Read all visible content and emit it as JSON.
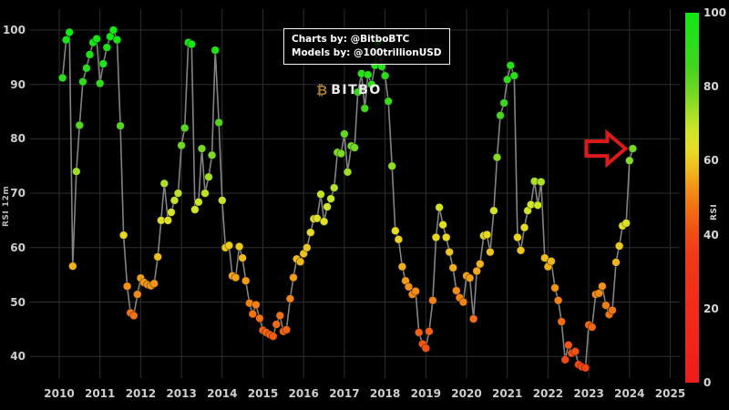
{
  "attribution": {
    "line1": "Charts by: @BitboBTC",
    "line2": "Models by: @100trillionUSD"
  },
  "logo": {
    "symbol": "₿",
    "text": "BITBO"
  },
  "axes": {
    "ylabel": "RSI 12m",
    "colorbar_label": "RSI",
    "x_ticks": [
      "2010",
      "2011",
      "2012",
      "2013",
      "2014",
      "2015",
      "2016",
      "2017",
      "2018",
      "2019",
      "2020",
      "2021",
      "2022",
      "2023",
      "2024",
      "2025"
    ],
    "y_ticks": [
      "100",
      "90",
      "80",
      "70",
      "60",
      "50",
      "40"
    ],
    "colorbar_ticks": [
      "100",
      "80",
      "60",
      "40",
      "20",
      "0"
    ]
  },
  "chart_data": {
    "type": "scatter",
    "title": "",
    "xlabel": "",
    "ylabel": "RSI 12m",
    "x_range": [
      2009.85,
      2025.3
    ],
    "y_axis_ticks": [
      100,
      90,
      80,
      70,
      60,
      50,
      40
    ],
    "x_axis_ticks": [
      2010,
      2011,
      2012,
      2013,
      2014,
      2015,
      2016,
      2017,
      2018,
      2019,
      2020,
      2021,
      2022,
      2023,
      2024,
      2025
    ],
    "grid": true,
    "line_color": "#9a9a9a",
    "grid_color": "#2e2e2e",
    "background": "#000000",
    "colorbar": {
      "min": 0,
      "max": 100,
      "ticks": [
        100,
        80,
        60,
        40,
        20,
        0
      ],
      "label": "RSI"
    },
    "color_stops": [
      [
        0,
        "#ee1c1c"
      ],
      [
        35,
        "#f13a16"
      ],
      [
        42,
        "#f05514"
      ],
      [
        48,
        "#f07514"
      ],
      [
        53,
        "#f29417"
      ],
      [
        58,
        "#eebb1e"
      ],
      [
        63,
        "#e6dc26"
      ],
      [
        68,
        "#cfe42a"
      ],
      [
        73,
        "#a5de28"
      ],
      [
        78,
        "#77d824"
      ],
      [
        85,
        "#44d41f"
      ],
      [
        92,
        "#2ade1c"
      ],
      [
        100,
        "#12e812"
      ]
    ],
    "arrow": {
      "points_to_x": 2024.08,
      "points_to_y": 78.2,
      "color": "#dd1a1a"
    },
    "points": [
      [
        2010.08,
        91.2
      ],
      [
        2010.17,
        98.2
      ],
      [
        2010.25,
        99.6
      ],
      [
        2010.33,
        56.6
      ],
      [
        2010.42,
        74.0
      ],
      [
        2010.5,
        82.5
      ],
      [
        2010.58,
        90.5
      ],
      [
        2010.67,
        93.0
      ],
      [
        2010.75,
        95.5
      ],
      [
        2010.83,
        97.7
      ],
      [
        2010.92,
        98.4
      ],
      [
        2011.0,
        90.2
      ],
      [
        2011.08,
        93.8
      ],
      [
        2011.17,
        96.8
      ],
      [
        2011.25,
        98.8
      ],
      [
        2011.33,
        100.0
      ],
      [
        2011.42,
        98.2
      ],
      [
        2011.5,
        82.4
      ],
      [
        2011.58,
        62.3
      ],
      [
        2011.67,
        52.9
      ],
      [
        2011.75,
        48.0
      ],
      [
        2011.83,
        47.5
      ],
      [
        2011.92,
        51.4
      ],
      [
        2012.0,
        54.4
      ],
      [
        2012.08,
        53.6
      ],
      [
        2012.17,
        53.2
      ],
      [
        2012.25,
        53.0
      ],
      [
        2012.33,
        53.4
      ],
      [
        2012.42,
        58.3
      ],
      [
        2012.5,
        65.0
      ],
      [
        2012.58,
        71.8
      ],
      [
        2012.67,
        65.0
      ],
      [
        2012.75,
        66.5
      ],
      [
        2012.83,
        68.7
      ],
      [
        2012.92,
        70.0
      ],
      [
        2013.0,
        78.8
      ],
      [
        2013.08,
        82.0
      ],
      [
        2013.17,
        97.7
      ],
      [
        2013.25,
        97.4
      ],
      [
        2013.33,
        67.0
      ],
      [
        2013.42,
        68.4
      ],
      [
        2013.5,
        78.2
      ],
      [
        2013.58,
        70.0
      ],
      [
        2013.67,
        73.0
      ],
      [
        2013.75,
        77.0
      ],
      [
        2013.83,
        96.3
      ],
      [
        2013.92,
        83.0
      ],
      [
        2014.0,
        68.7
      ],
      [
        2014.08,
        60.0
      ],
      [
        2014.17,
        60.4
      ],
      [
        2014.25,
        54.8
      ],
      [
        2014.33,
        54.5
      ],
      [
        2014.42,
        60.2
      ],
      [
        2014.5,
        58.1
      ],
      [
        2014.58,
        53.9
      ],
      [
        2014.67,
        49.8
      ],
      [
        2014.75,
        47.8
      ],
      [
        2014.83,
        49.5
      ],
      [
        2014.92,
        47.0
      ],
      [
        2015.0,
        44.8
      ],
      [
        2015.08,
        44.4
      ],
      [
        2015.17,
        44.0
      ],
      [
        2015.25,
        43.7
      ],
      [
        2015.33,
        45.9
      ],
      [
        2015.42,
        47.5
      ],
      [
        2015.5,
        44.6
      ],
      [
        2015.58,
        44.9
      ],
      [
        2015.67,
        50.6
      ],
      [
        2015.75,
        54.5
      ],
      [
        2015.83,
        57.9
      ],
      [
        2015.92,
        57.4
      ],
      [
        2016.0,
        58.9
      ],
      [
        2016.08,
        60.0
      ],
      [
        2016.17,
        62.8
      ],
      [
        2016.25,
        65.3
      ],
      [
        2016.33,
        65.4
      ],
      [
        2016.42,
        69.8
      ],
      [
        2016.5,
        64.8
      ],
      [
        2016.58,
        67.5
      ],
      [
        2016.67,
        69.0
      ],
      [
        2016.75,
        71.0
      ],
      [
        2016.83,
        77.5
      ],
      [
        2016.92,
        77.3
      ],
      [
        2017.0,
        80.9
      ],
      [
        2017.08,
        73.9
      ],
      [
        2017.17,
        78.7
      ],
      [
        2017.25,
        78.4
      ],
      [
        2017.33,
        88.6
      ],
      [
        2017.42,
        92.0
      ],
      [
        2017.5,
        85.6
      ],
      [
        2017.58,
        91.8
      ],
      [
        2017.67,
        90.0
      ],
      [
        2017.75,
        93.5
      ],
      [
        2017.83,
        97.8
      ],
      [
        2017.92,
        93.3
      ],
      [
        2018.0,
        91.6
      ],
      [
        2018.08,
        86.9
      ],
      [
        2018.17,
        75.0
      ],
      [
        2018.25,
        63.1
      ],
      [
        2018.33,
        61.5
      ],
      [
        2018.42,
        56.5
      ],
      [
        2018.5,
        53.9
      ],
      [
        2018.58,
        52.8
      ],
      [
        2018.67,
        51.4
      ],
      [
        2018.75,
        52.0
      ],
      [
        2018.83,
        44.4
      ],
      [
        2018.92,
        42.3
      ],
      [
        2019.0,
        41.5
      ],
      [
        2019.08,
        44.6
      ],
      [
        2019.17,
        50.3
      ],
      [
        2019.25,
        61.9
      ],
      [
        2019.33,
        67.4
      ],
      [
        2019.42,
        64.2
      ],
      [
        2019.5,
        61.9
      ],
      [
        2019.58,
        59.2
      ],
      [
        2019.67,
        56.3
      ],
      [
        2019.75,
        52.1
      ],
      [
        2019.83,
        50.8
      ],
      [
        2019.92,
        50.0
      ],
      [
        2020.0,
        54.8
      ],
      [
        2020.08,
        54.4
      ],
      [
        2020.17,
        46.9
      ],
      [
        2020.25,
        55.7
      ],
      [
        2020.33,
        57.0
      ],
      [
        2020.42,
        62.2
      ],
      [
        2020.5,
        62.4
      ],
      [
        2020.58,
        59.2
      ],
      [
        2020.67,
        66.8
      ],
      [
        2020.75,
        76.6
      ],
      [
        2020.83,
        84.3
      ],
      [
        2020.92,
        86.6
      ],
      [
        2021.0,
        90.9
      ],
      [
        2021.08,
        93.5
      ],
      [
        2021.17,
        91.6
      ],
      [
        2021.25,
        61.9
      ],
      [
        2021.33,
        59.5
      ],
      [
        2021.42,
        63.7
      ],
      [
        2021.5,
        66.8
      ],
      [
        2021.58,
        67.9
      ],
      [
        2021.67,
        72.2
      ],
      [
        2021.75,
        67.8
      ],
      [
        2021.83,
        72.1
      ],
      [
        2021.92,
        58.1
      ],
      [
        2022.0,
        56.5
      ],
      [
        2022.08,
        57.5
      ],
      [
        2022.17,
        52.6
      ],
      [
        2022.25,
        50.3
      ],
      [
        2022.33,
        46.4
      ],
      [
        2022.42,
        39.4
      ],
      [
        2022.5,
        42.1
      ],
      [
        2022.58,
        40.6
      ],
      [
        2022.67,
        40.9
      ],
      [
        2022.75,
        38.5
      ],
      [
        2022.83,
        38.1
      ],
      [
        2022.92,
        37.9
      ],
      [
        2023.0,
        45.8
      ],
      [
        2023.08,
        45.4
      ],
      [
        2023.17,
        51.4
      ],
      [
        2023.25,
        51.6
      ],
      [
        2023.33,
        52.9
      ],
      [
        2023.42,
        49.4
      ],
      [
        2023.5,
        47.7
      ],
      [
        2023.58,
        48.5
      ],
      [
        2023.67,
        57.3
      ],
      [
        2023.75,
        60.3
      ],
      [
        2023.83,
        64.0
      ],
      [
        2023.92,
        64.5
      ],
      [
        2024.0,
        76.0
      ],
      [
        2024.08,
        78.2
      ]
    ]
  }
}
